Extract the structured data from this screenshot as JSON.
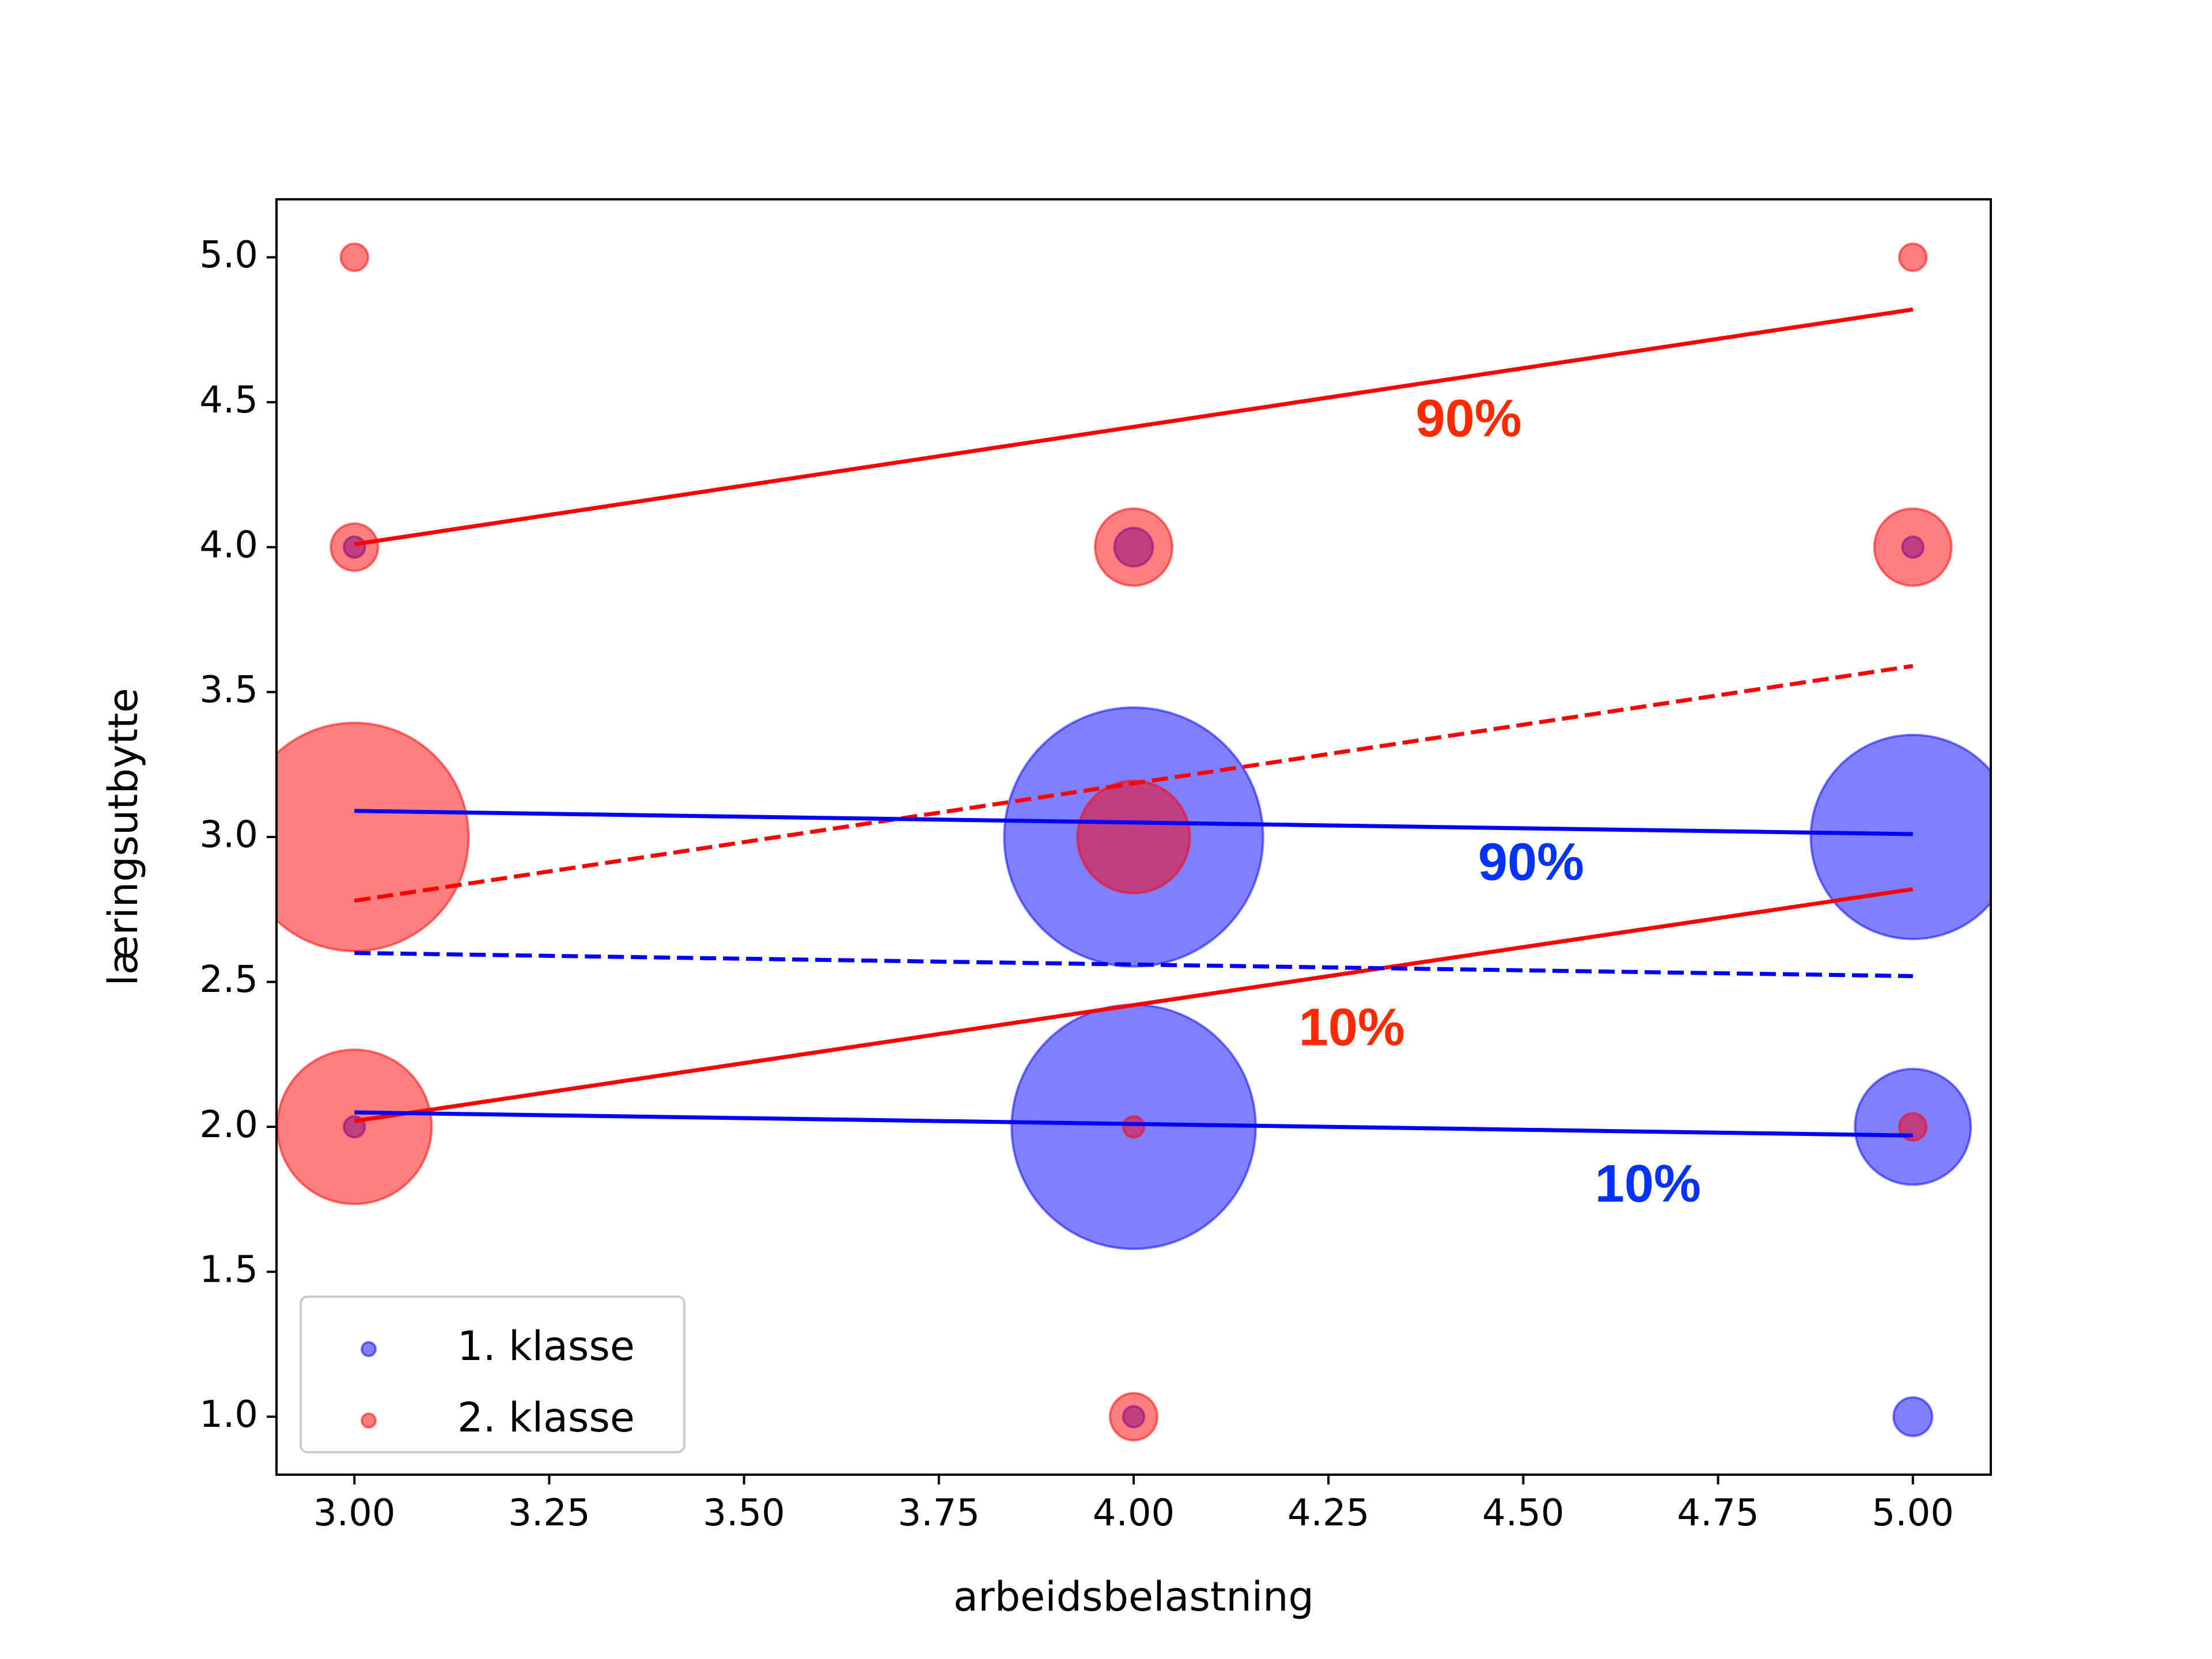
{
  "chart_data": {
    "type": "scatter",
    "title": "",
    "xlabel": "arbeidsbelastning",
    "ylabel": "læringsutbytte",
    "xlim": [
      2.9,
      5.1
    ],
    "ylim": [
      0.8,
      5.2
    ],
    "xticks": [
      "3.00",
      "3.25",
      "3.50",
      "3.75",
      "4.00",
      "4.25",
      "4.50",
      "4.75",
      "5.00"
    ],
    "yticks": [
      "1.0",
      "1.5",
      "2.0",
      "2.5",
      "3.0",
      "3.5",
      "4.0",
      "4.5",
      "5.0"
    ],
    "grid": false,
    "legend_position": "lower-left",
    "series": [
      {
        "name": "1. klasse",
        "color": "#0000ff",
        "alpha": 0.5,
        "points": [
          {
            "x": 3,
            "y": 4,
            "count": 0.3
          },
          {
            "x": 3,
            "y": 2,
            "count": 0.3
          },
          {
            "x": 4,
            "y": 4,
            "count": 1
          },
          {
            "x": 4,
            "y": 3,
            "count": 45
          },
          {
            "x": 4,
            "y": 2,
            "count": 40
          },
          {
            "x": 4,
            "y": 1,
            "count": 0.3
          },
          {
            "x": 5,
            "y": 4,
            "count": 0.3
          },
          {
            "x": 5,
            "y": 3,
            "count": 28
          },
          {
            "x": 5,
            "y": 2,
            "count": 9
          },
          {
            "x": 5,
            "y": 1,
            "count": 1
          }
        ]
      },
      {
        "name": "2. klasse",
        "color": "#ff0000",
        "alpha": 0.5,
        "points": [
          {
            "x": 3,
            "y": 5,
            "count": 0.5
          },
          {
            "x": 3,
            "y": 4,
            "count": 1.5
          },
          {
            "x": 3,
            "y": 3,
            "count": 35
          },
          {
            "x": 3,
            "y": 2,
            "count": 16
          },
          {
            "x": 4,
            "y": 4,
            "count": 4
          },
          {
            "x": 4,
            "y": 3,
            "count": 8.5
          },
          {
            "x": 4,
            "y": 2,
            "count": 0.3
          },
          {
            "x": 4,
            "y": 1,
            "count": 1.5
          },
          {
            "x": 5,
            "y": 5,
            "count": 0.5
          },
          {
            "x": 5,
            "y": 4,
            "count": 4
          },
          {
            "x": 5,
            "y": 2,
            "count": 0.5
          }
        ]
      }
    ],
    "quantile_lines": [
      {
        "color": "#ff0000",
        "style": "solid",
        "x": [
          3,
          5
        ],
        "y": [
          4.01,
          4.82
        ]
      },
      {
        "color": "#ff0000",
        "style": "dashed",
        "x": [
          3,
          5
        ],
        "y": [
          2.78,
          3.59
        ]
      },
      {
        "color": "#ff0000",
        "style": "solid",
        "x": [
          3,
          5
        ],
        "y": [
          2.02,
          2.82
        ]
      },
      {
        "color": "#0000ff",
        "style": "solid",
        "x": [
          3,
          5
        ],
        "y": [
          3.09,
          3.01
        ]
      },
      {
        "color": "#0000ff",
        "style": "dashed",
        "x": [
          3,
          5
        ],
        "y": [
          2.6,
          2.52
        ]
      },
      {
        "color": "#0000ff",
        "style": "solid",
        "x": [
          3,
          5
        ],
        "y": [
          2.05,
          1.97
        ]
      }
    ],
    "annotations": [
      {
        "text": "90%",
        "color": "#ff2a00",
        "x": 4.43,
        "y": 4.43
      },
      {
        "text": "90%",
        "color": "#0033ff",
        "x": 4.51,
        "y": 2.9
      },
      {
        "text": "10%",
        "color": "#ff2a00",
        "x": 4.28,
        "y": 2.33
      },
      {
        "text": "10%",
        "color": "#0033ff",
        "x": 4.66,
        "y": 1.79
      }
    ]
  }
}
